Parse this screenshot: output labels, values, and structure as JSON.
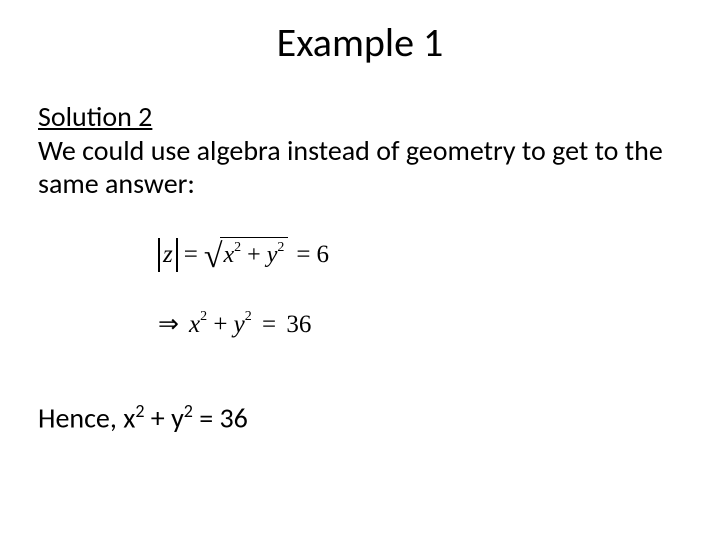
{
  "title": "Example 1",
  "solution_label": "Solution 2",
  "intro_text": "We could use algebra instead of geometry to get to the same answer:",
  "math": {
    "lhs_var": "z",
    "rhs_value": "6",
    "var_x": "x",
    "var_y": "y",
    "exp": "2",
    "plus": "+",
    "eq": "=",
    "implies": "⇒",
    "squared_result": "36"
  },
  "conclusion_prefix": "Hence, ",
  "conclusion_x": "x",
  "conclusion_y": "y",
  "conclusion_exp": "2",
  "conclusion_plus": " + ",
  "conclusion_eq": " = ",
  "conclusion_val": "36",
  "style": {
    "bg": "#ffffff",
    "fg": "#000000",
    "title_fontsize": 40,
    "body_fontsize": 28,
    "math_fontsize": 27
  }
}
